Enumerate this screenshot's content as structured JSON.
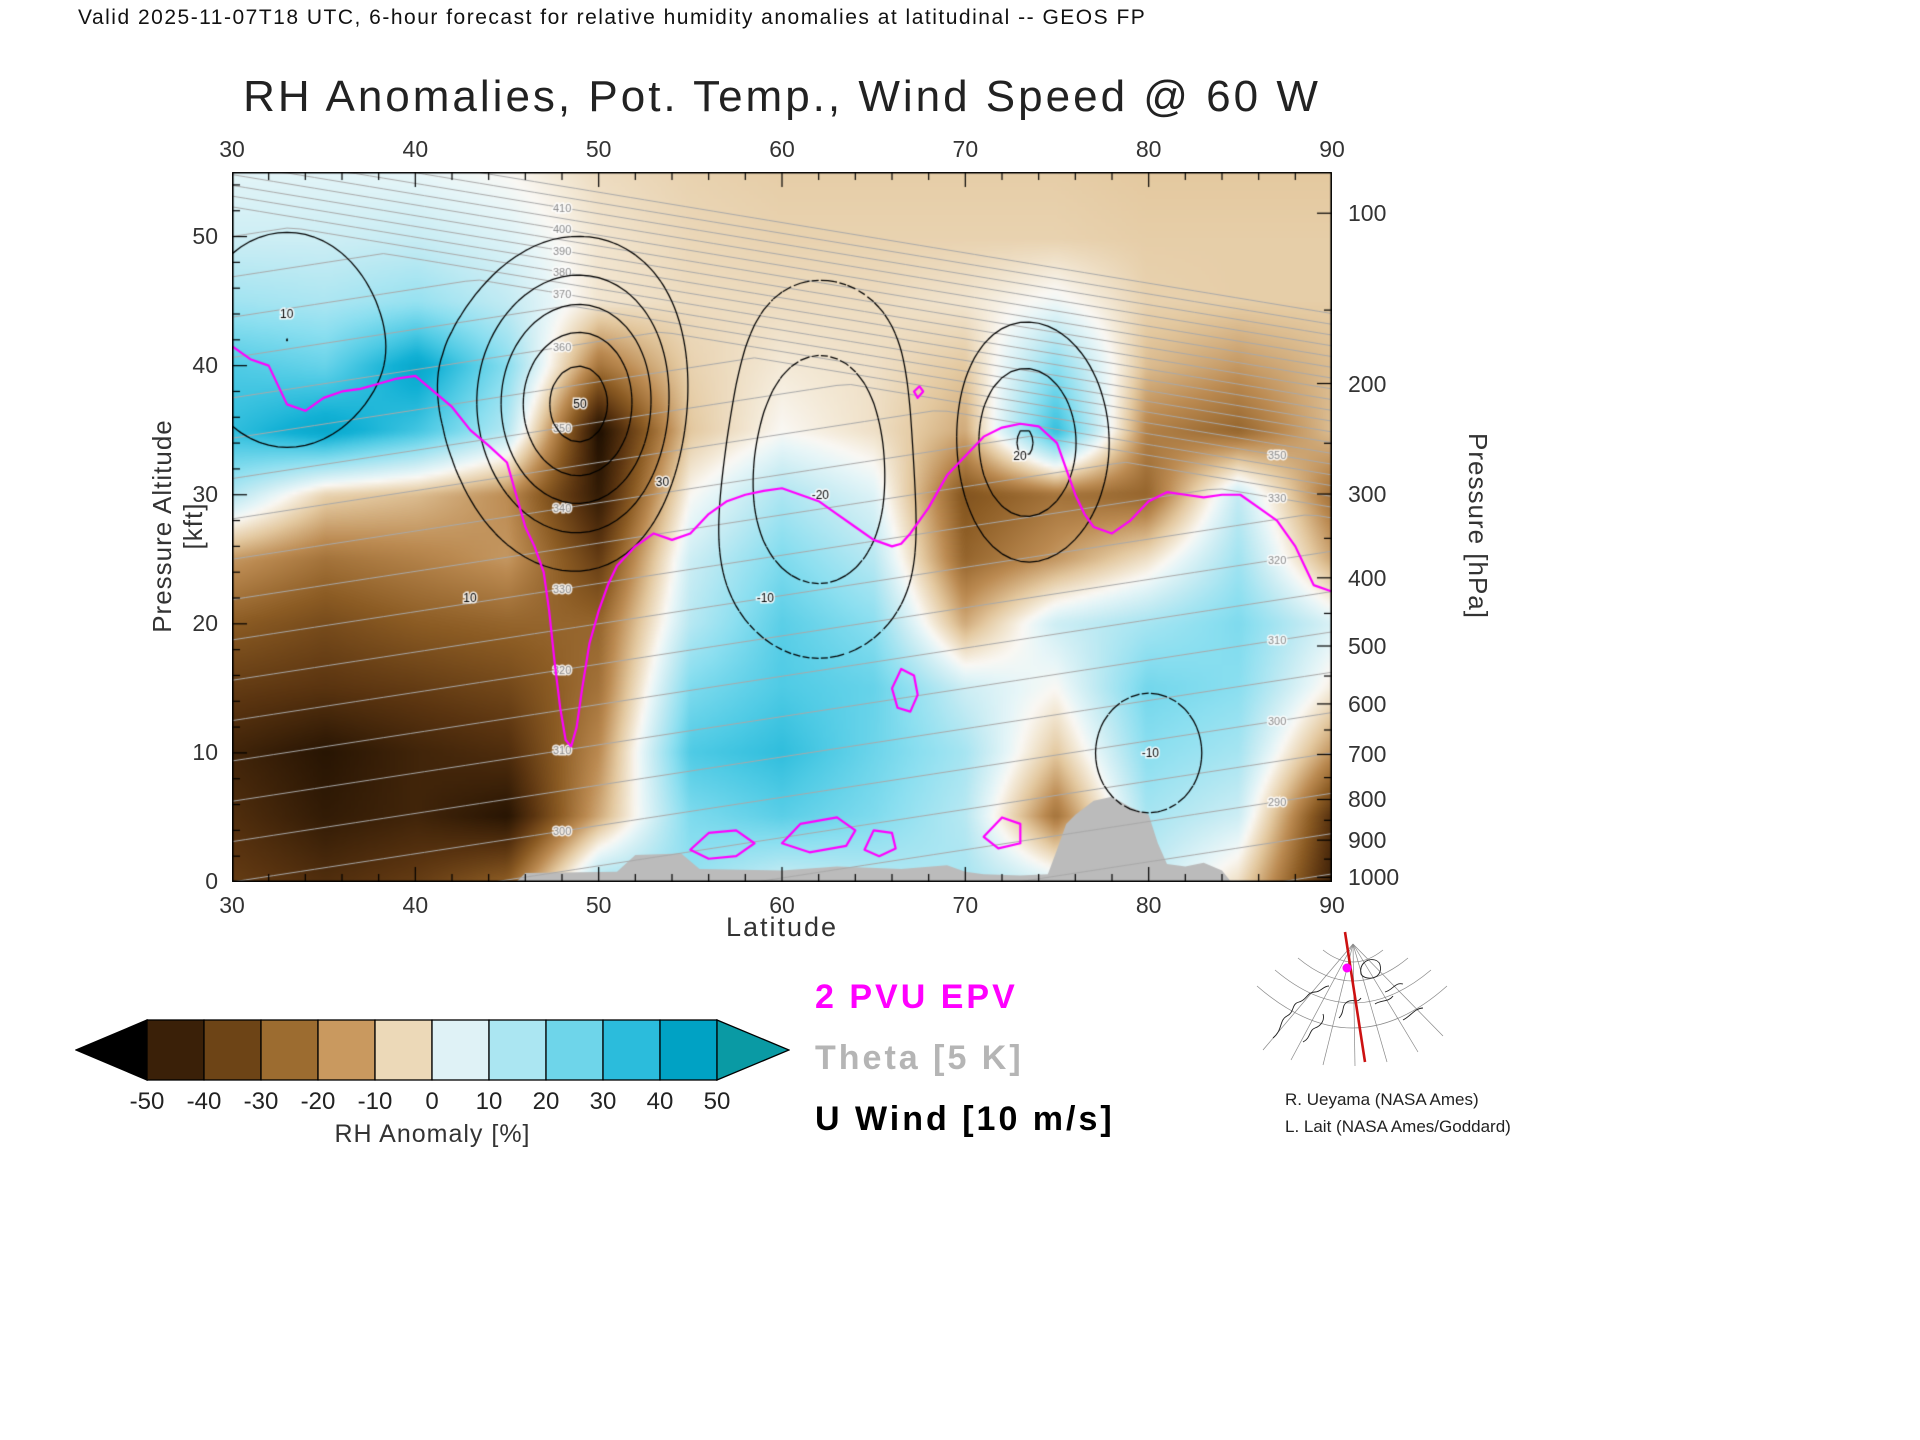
{
  "header": {
    "valid_line": "Valid 2025-11-07T18 UTC, 6-hour forecast for relative humidity anomalies at latitudinal -- GEOS FP"
  },
  "title": "RH Anomalies, Pot. Temp., Wind Speed @ 60 W",
  "axes": {
    "x": {
      "label": "Latitude",
      "min": 30,
      "max": 90,
      "ticks": [
        30,
        40,
        50,
        60,
        70,
        80,
        90
      ]
    },
    "y_left": {
      "label": "Pressure Altitude [kft]",
      "min": 0,
      "max": 55,
      "ticks": [
        0,
        10,
        20,
        30,
        40,
        50
      ]
    },
    "y_right": {
      "label": "Pressure [hPa]",
      "ticks": [
        100,
        200,
        300,
        400,
        500,
        600,
        700,
        800,
        900,
        1000
      ]
    }
  },
  "legend": [
    {
      "label": "2 PVU EPV",
      "color": "#ff00ff"
    },
    {
      "label": "Theta [5 K]",
      "color": "#b5b5b5"
    },
    {
      "label": "U Wind [10 m/s]",
      "color": "#000000"
    }
  ],
  "colorbar": {
    "title": "RH Anomaly [%]",
    "tick_labels": [
      -50,
      -40,
      -30,
      -20,
      -10,
      0,
      10,
      20,
      30,
      40,
      50
    ],
    "segment_colors": [
      "#3a2008",
      "#6d4416",
      "#9c6c30",
      "#c9995f",
      "#ecd9b8",
      "#dff2f6",
      "#abe6f2",
      "#6ed5ea",
      "#2bbcdc",
      "#00a2c4"
    ],
    "left_arrow_color": "#000000",
    "right_arrow_color": "#0a9aa4"
  },
  "credits": [
    "R. Ueyama (NASA Ames)",
    "L. Lait (NASA Ames/Goddard)"
  ],
  "inset_map": {
    "meridian_color": "#cc1111",
    "dot_color": "#ff00ff"
  },
  "chart_data": {
    "type": "heatmap",
    "title": "RH Anomalies, Pot. Temp., Wind Speed @ 60 W",
    "xlabel": "Latitude",
    "ylabel": "Pressure Altitude [kft]",
    "ylabel_right": "Pressure [hPa]",
    "x": [
      30,
      35,
      40,
      45,
      50,
      55,
      60,
      65,
      70,
      75,
      80,
      85,
      90
    ],
    "y": [
      0,
      5,
      10,
      15,
      20,
      25,
      30,
      35,
      40,
      45,
      50,
      55
    ],
    "units": "RH anomaly percent, rows bottom-up from 0 kft",
    "rh_anomaly_grid": [
      [
        -38,
        -42,
        -38,
        -30,
        15,
        18,
        8,
        12,
        15,
        5,
        10,
        -5,
        -45
      ],
      [
        -42,
        -48,
        -45,
        -50,
        -15,
        22,
        28,
        22,
        12,
        -25,
        15,
        8,
        -40
      ],
      [
        -45,
        -50,
        -45,
        -42,
        -20,
        30,
        35,
        25,
        15,
        -10,
        20,
        15,
        -18
      ],
      [
        -38,
        -40,
        -38,
        -35,
        -25,
        22,
        30,
        26,
        8,
        0,
        24,
        20,
        -2
      ],
      [
        -30,
        -34,
        -30,
        -28,
        -28,
        12,
        28,
        20,
        -15,
        8,
        15,
        22,
        6
      ],
      [
        -18,
        -25,
        -22,
        -18,
        -38,
        8,
        22,
        12,
        -28,
        -18,
        -5,
        16,
        -15
      ],
      [
        12,
        -8,
        -12,
        -20,
        -48,
        0,
        14,
        5,
        -32,
        -25,
        -28,
        10,
        -25
      ],
      [
        35,
        45,
        32,
        12,
        -52,
        -10,
        0,
        -5,
        -15,
        35,
        -22,
        -28,
        -12
      ],
      [
        30,
        26,
        45,
        20,
        -25,
        -8,
        -3,
        -5,
        -10,
        20,
        -12,
        -18,
        -12
      ],
      [
        16,
        14,
        18,
        10,
        -4,
        -6,
        -6,
        -6,
        -4,
        2,
        -8,
        -9,
        -9
      ],
      [
        8,
        8,
        9,
        5,
        -4,
        -7,
        -8,
        -8,
        -8,
        -8,
        -9,
        -9,
        -9
      ],
      [
        4,
        4,
        3,
        0,
        -6,
        -8,
        -9,
        -9,
        -9,
        -9,
        -10,
        -10,
        -10
      ]
    ],
    "colormap_stops": [
      [
        -55,
        "#000000"
      ],
      [
        -50,
        "#281503"
      ],
      [
        -40,
        "#5a3410"
      ],
      [
        -30,
        "#8c5c24"
      ],
      [
        -20,
        "#bc8b52"
      ],
      [
        -10,
        "#e4c9a0"
      ],
      [
        -3,
        "#f4ead8"
      ],
      [
        0,
        "#faf8f4"
      ],
      [
        3,
        "#e8f6f8"
      ],
      [
        10,
        "#c3ebf3"
      ],
      [
        20,
        "#8bdff0"
      ],
      [
        30,
        "#4fcbe5"
      ],
      [
        40,
        "#12b1d5"
      ],
      [
        50,
        "#009fc2"
      ],
      [
        55,
        "#0d8a84"
      ]
    ],
    "theta": {
      "contour_interval_K": 5,
      "min": 270,
      "max": 420,
      "step": 5,
      "surface_theta_at_30N": 300,
      "lat_gradient": -0.35,
      "lapse_tropo": 1.6,
      "lapse_strat": 6,
      "tropopause_kft_at_30N": 52,
      "tropopause_slope": -0.4,
      "label_columns": [
        {
          "lat": 48,
          "values": [
            290,
            300,
            310,
            320,
            330,
            340,
            350,
            360,
            370,
            380,
            390,
            400,
            410,
            420
          ]
        },
        {
          "lat": 87,
          "values": [
            280,
            290,
            300,
            310,
            320,
            330,
            350
          ]
        }
      ]
    },
    "uwind": {
      "contour_interval_mps": 10,
      "levels": [
        -30,
        -20,
        -10,
        10,
        20,
        30,
        40,
        50
      ],
      "negative_style": "dashed",
      "components": [
        {
          "amp": 55,
          "lat": 49,
          "z": 37,
          "slat": 5.5,
          "sz": 10
        },
        {
          "amp": 32,
          "lat": 73,
          "z": 34,
          "slat": 4.5,
          "sz": 9
        },
        {
          "amp": 20,
          "lat": 33,
          "z": 42,
          "slat": 6,
          "sz": 10
        },
        {
          "amp": -30,
          "lat": 62,
          "z": 32,
          "slat": 6.5,
          "sz": 14
        },
        {
          "amp": -14,
          "lat": 80,
          "z": 10,
          "slat": 5,
          "sz": 8
        }
      ],
      "labels": [
        {
          "v": "50",
          "lat": 49,
          "z": 37
        },
        {
          "v": "30",
          "lat": 53.5,
          "z": 31
        },
        {
          "v": "10",
          "lat": 43,
          "z": 22
        },
        {
          "v": "-10",
          "lat": 59,
          "z": 22
        },
        {
          "v": "-20",
          "lat": 62,
          "z": 30
        },
        {
          "v": "20",
          "lat": 73,
          "z": 33
        },
        {
          "v": "-10",
          "lat": 80,
          "z": 10
        },
        {
          "v": "10",
          "lat": 33,
          "z": 44
        }
      ]
    },
    "epv_2pvu_line": [
      [
        30,
        41.5
      ],
      [
        31,
        40.5
      ],
      [
        32,
        40
      ],
      [
        33,
        37
      ],
      [
        34,
        36.5
      ],
      [
        35,
        37.5
      ],
      [
        36,
        38
      ],
      [
        37,
        38.2
      ],
      [
        38,
        38.6
      ],
      [
        39,
        39
      ],
      [
        40,
        39.2
      ],
      [
        41,
        38
      ],
      [
        42,
        36.8
      ],
      [
        43,
        35
      ],
      [
        44,
        33.8
      ],
      [
        45,
        32.5
      ],
      [
        45.5,
        30
      ],
      [
        46,
        27.5
      ],
      [
        46.5,
        26
      ],
      [
        47,
        24
      ],
      [
        47.3,
        21
      ],
      [
        47.6,
        17
      ],
      [
        47.9,
        13.5
      ],
      [
        48.2,
        11
      ],
      [
        48.5,
        10.5
      ],
      [
        48.8,
        12
      ],
      [
        49.1,
        15
      ],
      [
        49.5,
        18.5
      ],
      [
        50,
        21
      ],
      [
        50.5,
        23
      ],
      [
        51,
        24.5
      ],
      [
        52,
        26
      ],
      [
        53,
        27
      ],
      [
        54,
        26.5
      ],
      [
        55,
        27
      ],
      [
        56,
        28.5
      ],
      [
        57,
        29.5
      ],
      [
        58,
        30
      ],
      [
        59,
        30.3
      ],
      [
        60,
        30.5
      ],
      [
        61,
        30
      ],
      [
        62,
        29.5
      ],
      [
        63,
        28.5
      ],
      [
        64,
        27.5
      ],
      [
        65,
        26.5
      ],
      [
        66,
        26
      ],
      [
        66.5,
        26.2
      ],
      [
        67,
        27
      ],
      [
        68,
        29
      ],
      [
        69,
        31.5
      ],
      [
        70,
        33
      ],
      [
        71,
        34.5
      ],
      [
        72,
        35.2
      ],
      [
        73,
        35.5
      ],
      [
        74,
        35.3
      ],
      [
        75,
        34
      ],
      [
        75.5,
        32
      ],
      [
        76,
        30
      ],
      [
        76.5,
        28.5
      ],
      [
        77,
        27.5
      ],
      [
        78,
        27
      ],
      [
        79,
        28
      ],
      [
        80,
        29.5
      ],
      [
        81,
        30.2
      ],
      [
        82,
        30
      ],
      [
        83,
        29.8
      ],
      [
        84,
        30
      ],
      [
        85,
        30
      ],
      [
        86,
        29
      ],
      [
        87,
        28
      ],
      [
        88,
        26
      ],
      [
        88.5,
        24.5
      ],
      [
        89,
        23
      ],
      [
        90,
        22.5
      ]
    ],
    "epv_2pvu_loops": [
      [
        [
          55,
          2.5
        ],
        [
          56,
          3.8
        ],
        [
          57.5,
          4
        ],
        [
          58.5,
          3
        ],
        [
          57.5,
          2
        ],
        [
          56,
          1.8
        ]
      ],
      [
        [
          60,
          3
        ],
        [
          61,
          4.5
        ],
        [
          63,
          5
        ],
        [
          64,
          4
        ],
        [
          63.5,
          2.8
        ],
        [
          61.5,
          2.3
        ]
      ],
      [
        [
          66.3,
          13.5
        ],
        [
          66,
          15
        ],
        [
          66.5,
          16.5
        ],
        [
          67.2,
          16
        ],
        [
          67.4,
          14.5
        ],
        [
          67,
          13.2
        ]
      ],
      [
        [
          64.5,
          2.5
        ],
        [
          65,
          4
        ],
        [
          66,
          3.8
        ],
        [
          66.2,
          2.6
        ],
        [
          65.3,
          2
        ]
      ],
      [
        [
          71,
          3.5
        ],
        [
          72,
          5
        ],
        [
          73,
          4.5
        ],
        [
          73,
          3
        ],
        [
          71.8,
          2.6
        ]
      ],
      [
        [
          67.4,
          37.5
        ],
        [
          67.7,
          38
        ],
        [
          67.5,
          38.4
        ],
        [
          67.2,
          38
        ]
      ]
    ],
    "terrain": [
      [
        45.5,
        0.0
      ],
      [
        46,
        0.7
      ],
      [
        51,
        0.8
      ],
      [
        52,
        2.1
      ],
      [
        54.5,
        2.2
      ],
      [
        55.5,
        1.0
      ],
      [
        60,
        0.9
      ],
      [
        63,
        1.2
      ],
      [
        66.5,
        1.0
      ],
      [
        69,
        1.3
      ],
      [
        70,
        0.8
      ],
      [
        71,
        0.6
      ],
      [
        73,
        0.5
      ],
      [
        74.5,
        0.6
      ],
      [
        75,
        2.5
      ],
      [
        75.5,
        4.5
      ],
      [
        76,
        5.2
      ],
      [
        77,
        6.3
      ],
      [
        78,
        6.6
      ],
      [
        79,
        5.8
      ],
      [
        80,
        5.2
      ],
      [
        80.5,
        3.0
      ],
      [
        81,
        1.4
      ],
      [
        82,
        1.2
      ],
      [
        83,
        1.5
      ],
      [
        84,
        0.9
      ],
      [
        84.5,
        0.0
      ]
    ],
    "terrain_color": "#bbbbbb"
  }
}
